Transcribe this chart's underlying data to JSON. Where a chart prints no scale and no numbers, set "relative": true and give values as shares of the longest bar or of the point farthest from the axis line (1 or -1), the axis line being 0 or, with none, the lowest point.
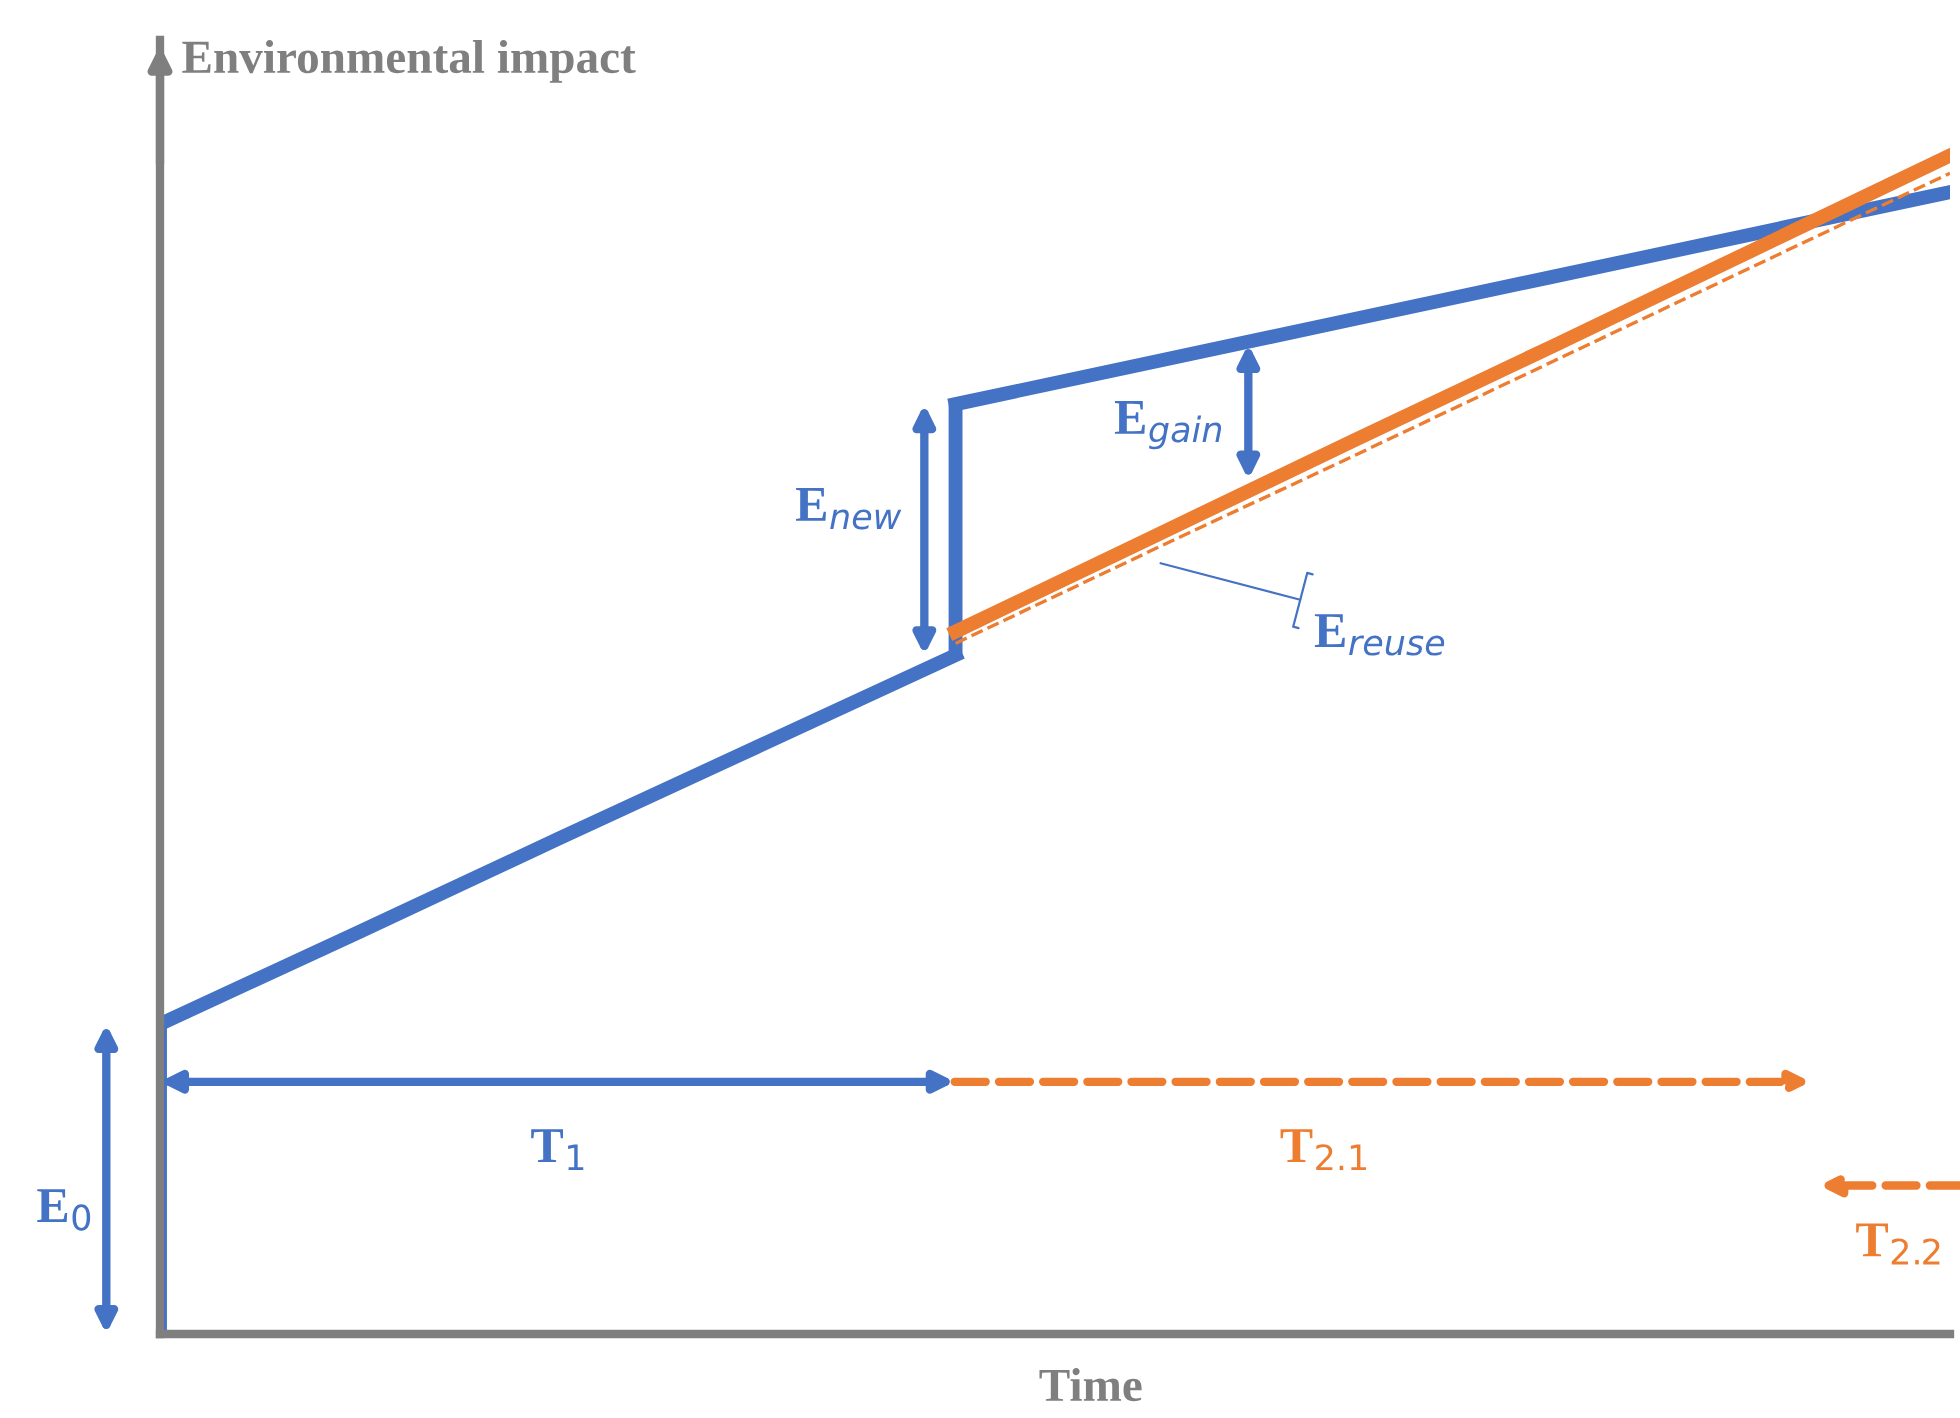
{
  "chart_data": {
    "type": "line",
    "relative": true,
    "xlabel": "Time",
    "ylabel": "Environmental impact",
    "tick_labels": false,
    "marker": "none",
    "categories": [
      null,
      null,
      null,
      null,
      null,
      null,
      null,
      null,
      null,
      null
    ],
    "series": [
      {
        "color": "#4472c4",
        "values": [
          0.263,
          0.341,
          0.42,
          0.498,
          0.576,
          null,
          null,
          null,
          null,
          null
        ],
        "line_style": "solid"
      },
      {
        "color": "#4472c4",
        "values": [
          null,
          null,
          null,
          null,
          0.789,
          0.825,
          0.861,
          0.897,
          0.933,
          0.969
        ],
        "line_style": "solid"
      },
      {
        "color": "#ed7d31",
        "values": [
          null,
          null,
          null,
          null,
          0.596,
          0.677,
          0.758,
          0.838,
          0.919,
          1.0
        ],
        "line_style": "solid"
      },
      {
        "color": "#ed7d31",
        "values": [
          null,
          null,
          null,
          null,
          0.586,
          0.666,
          0.745,
          0.825,
          0.905,
          0.985
        ],
        "line_style": "dashed"
      }
    ],
    "annotations": [
      "E$_{0}$",
      "T$_{1}$",
      "T$_{2.1}$",
      "T$_{2.2}$",
      "E$_{new}$",
      "E$_{gain}$",
      "E$_{reuse}$"
    ]
  }
}
